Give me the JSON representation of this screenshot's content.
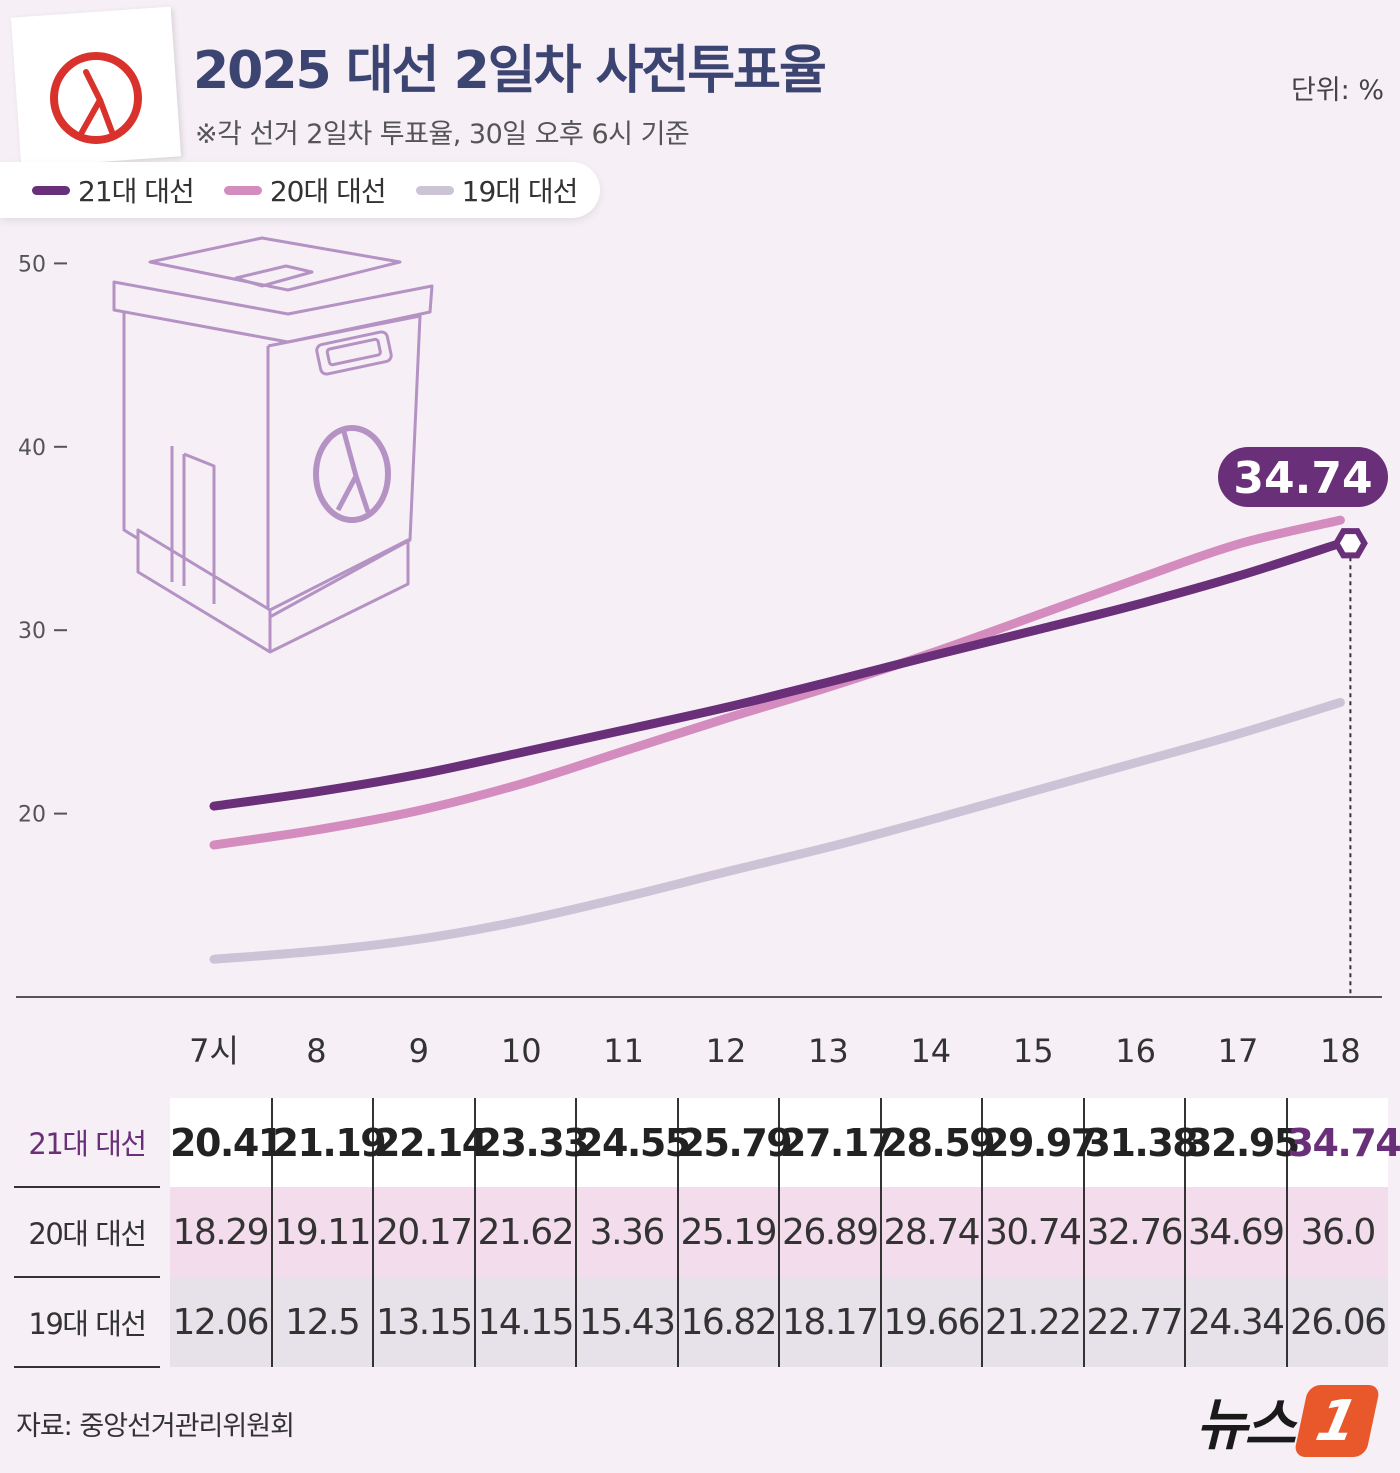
{
  "title": "2025 대선 2일차 사전투표율",
  "subtitle": "※각 선거 2일차 투표율, 30일 오후 6시 기준",
  "unit": "단위: %",
  "source": "자료: 중앙선거관리위원회",
  "logo": {
    "text": "뉴스",
    "badge": "1"
  },
  "colors": {
    "s21": "#6a2f79",
    "s20": "#d48cbf",
    "s19": "#cdc3d6",
    "accent": "#6a2f79",
    "title": "#3c4572"
  },
  "chart_data": {
    "type": "line",
    "x": [
      "7시",
      "8",
      "9",
      "10",
      "11",
      "12",
      "13",
      "14",
      "15",
      "16",
      "17",
      "18"
    ],
    "ylim": [
      10,
      50
    ],
    "yticks": [
      20,
      30,
      40,
      50
    ],
    "grid": false,
    "legend_position": "top-left",
    "series": [
      {
        "name": "21대 대선",
        "values": [
          20.41,
          21.19,
          22.14,
          23.33,
          24.55,
          25.79,
          27.17,
          28.59,
          29.97,
          31.38,
          32.95,
          34.74
        ]
      },
      {
        "name": "20대 대선",
        "values": [
          18.29,
          19.11,
          20.17,
          21.62,
          3.36,
          25.19,
          26.89,
          28.74,
          30.74,
          32.76,
          34.69,
          36.0
        ]
      },
      {
        "name": "19대 대선",
        "values": [
          12.06,
          12.5,
          13.15,
          14.15,
          15.43,
          16.82,
          18.17,
          19.66,
          21.22,
          22.77,
          24.34,
          26.06
        ]
      }
    ],
    "annotation": {
      "label": "34.74",
      "series": "21대 대선",
      "x": "18"
    }
  },
  "table": {
    "rows": [
      {
        "label": "21대 대선",
        "values": [
          "20.41",
          "21.19",
          "22.14",
          "23.33",
          "24.55",
          "25.79",
          "27.17",
          "28.59",
          "29.97",
          "31.38",
          "32.95",
          "34.74"
        ]
      },
      {
        "label": "20대 대선",
        "values": [
          "18.29",
          "19.11",
          "20.17",
          "21.62",
          "3.36",
          "25.19",
          "26.89",
          "28.74",
          "30.74",
          "32.76",
          "34.69",
          "36.0"
        ]
      },
      {
        "label": "19대 대선",
        "values": [
          "12.06",
          "12.5",
          "13.15",
          "14.15",
          "15.43",
          "16.82",
          "18.17",
          "19.66",
          "21.22",
          "22.77",
          "24.34",
          "26.06"
        ]
      }
    ]
  }
}
